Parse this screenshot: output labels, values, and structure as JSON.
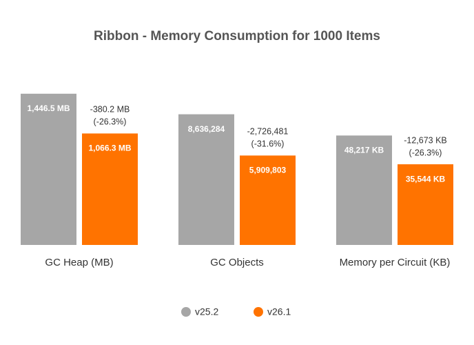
{
  "chart_data": {
    "type": "bar",
    "title": "Ribbon - Memory Consumption for 1000 Items",
    "categories": [
      "GC Heap (MB)",
      "GC Objects",
      "Memory per Circuit (KB)"
    ],
    "series": [
      {
        "name": "v25.2",
        "color": "#a6a6a6",
        "values": [
          1446.5,
          8636284,
          48217
        ],
        "value_labels": [
          "1,446.5 MB",
          "8,636,284",
          "48,217 KB"
        ]
      },
      {
        "name": "v26.1",
        "color": "#ff7300",
        "values": [
          1066.3,
          5909803,
          35544
        ],
        "value_labels": [
          "1,066.3 MB",
          "5,909,803",
          "35,544 KB"
        ]
      }
    ],
    "annotations": [
      [
        "-380.2 MB",
        "(-26.3%)"
      ],
      [
        "-2,726,481",
        "(-31.6%)"
      ],
      [
        "-12,673 KB",
        "(-26.3%)"
      ]
    ],
    "ylims": [
      [
        0,
        1650
      ],
      [
        0,
        11400000
      ],
      [
        0,
        76000
      ]
    ],
    "legend": "bottom"
  }
}
